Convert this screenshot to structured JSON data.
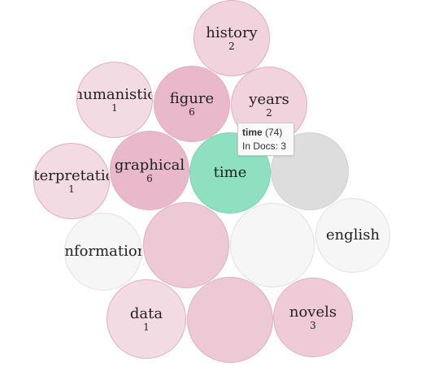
{
  "bubbles": [
    {
      "id": "history",
      "term": "history",
      "count": "2",
      "color": "#f0d3dd"
    },
    {
      "id": "humanistic",
      "term": "humanistic",
      "count": "1",
      "color": "#f3dbe3"
    },
    {
      "id": "figure",
      "term": "figure",
      "count": "6",
      "color": "#e9b9cb"
    },
    {
      "id": "years",
      "term": "years",
      "count": "2",
      "color": "#f0d3dd"
    },
    {
      "id": "interpretation",
      "term": "interpretation",
      "count": "1",
      "color": "#f3dbe3"
    },
    {
      "id": "graphical",
      "term": "graphical",
      "count": "6",
      "color": "#e9b9cb"
    },
    {
      "id": "time",
      "term": "time",
      "count": "",
      "color": "#8ee0c0"
    },
    {
      "id": "grey",
      "term": "",
      "count": "",
      "color": "#dddddd"
    },
    {
      "id": "information",
      "term": "information",
      "count": "",
      "color": "#f6f6f6"
    },
    {
      "id": "pink-large",
      "term": "",
      "count": "",
      "color": "#edc9d6"
    },
    {
      "id": "white-large",
      "term": "",
      "count": "",
      "color": "#f6f6f6"
    },
    {
      "id": "english",
      "term": "english",
      "count": "",
      "color": "#f6f6f6"
    },
    {
      "id": "data",
      "term": "data",
      "count": "1",
      "color": "#f3dbe3"
    },
    {
      "id": "pink-bottom",
      "term": "",
      "count": "",
      "color": "#edc9d6"
    },
    {
      "id": "novels",
      "term": "novels",
      "count": "3",
      "color": "#efcbd8"
    }
  ],
  "tooltip": {
    "term": "time",
    "freq": "(74)",
    "docs_label": "In Docs: 3"
  }
}
